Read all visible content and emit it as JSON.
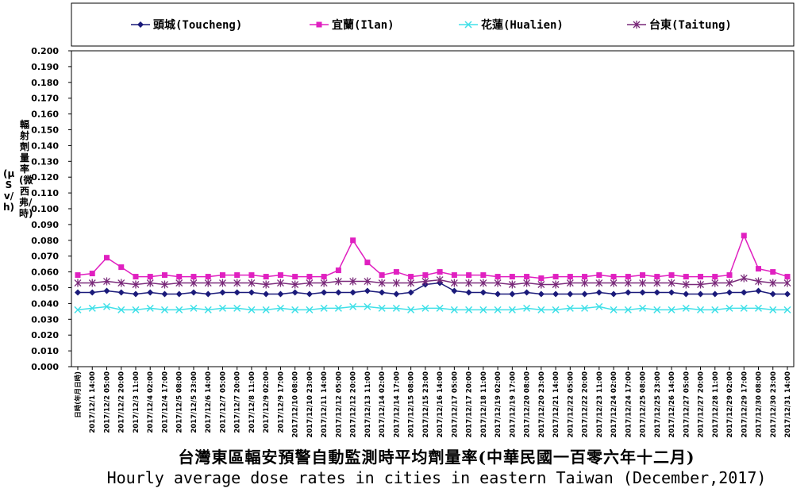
{
  "chart_data": {
    "type": "line",
    "title_zh": "台灣東區輻安預警自動監測時平均劑量率(中華民國一百零六年十二月)",
    "title_en": "Hourly average dose rates in cities in eastern Taiwan (December,2017)",
    "ylabel_part1": "輻射劑量率(微西弗/時)",
    "ylabel_part2": "(μSv/h)",
    "ylim": [
      0,
      0.2
    ],
    "ytick_step": 0.01,
    "y_ticks": [
      "0.000",
      "0.010",
      "0.020",
      "0.030",
      "0.040",
      "0.050",
      "0.060",
      "0.070",
      "0.080",
      "0.090",
      "0.100",
      "0.110",
      "0.120",
      "0.130",
      "0.140",
      "0.150",
      "0.160",
      "0.170",
      "0.180",
      "0.190",
      "0.200"
    ],
    "x_tick_labels": [
      "日時(年月日時)",
      "2017/12/1 14:00",
      "2017/12/2 05:00",
      "2017/12/2 20:00",
      "2017/12/3 11:00",
      "2017/12/4 02:00",
      "2017/12/4 17:00",
      "2017/12/5 08:00",
      "2017/12/5 23:00",
      "2017/12/6 14:00",
      "2017/12/7 05:00",
      "2017/12/7 20:00",
      "2017/12/8 11:00",
      "2017/12/9 02:00",
      "2017/12/9 17:00",
      "2017/12/10 08:00",
      "2017/12/10 23:00",
      "2017/12/11 14:00",
      "2017/12/12 05:00",
      "2017/12/12 20:00",
      "2017/12/13 11:00",
      "2017/12/14 02:00",
      "2017/12/14 17:00",
      "2017/12/15 08:00",
      "2017/12/15 23:00",
      "2017/12/16 14:00",
      "2017/12/17 05:00",
      "2017/12/17 20:00",
      "2017/12/18 11:00",
      "2017/12/19 02:00",
      "2017/12/19 17:00",
      "2017/12/20 08:00",
      "2017/12/20 23:00",
      "2017/12/21 14:00",
      "2017/12/22 05:00",
      "2017/12/22 20:00",
      "2017/12/23 11:00",
      "2017/12/24 02:00",
      "2017/12/24 17:00",
      "2017/12/25 08:00",
      "2017/12/25 23:00",
      "2017/12/26 14:00",
      "2017/12/27 05:00",
      "2017/12/27 20:00",
      "2017/12/28 11:00",
      "2017/12/29 02:00",
      "2017/12/29 17:00",
      "2017/12/30 08:00",
      "2017/12/30 23:00",
      "2017/12/31 14:00"
    ],
    "legend_position": "top",
    "grid": false,
    "series": [
      {
        "name": "頭城(Toucheng)",
        "color": "#1a1a7a",
        "marker": "diamond",
        "values": [
          0.047,
          0.047,
          0.048,
          0.047,
          0.046,
          0.047,
          0.046,
          0.046,
          0.047,
          0.046,
          0.047,
          0.047,
          0.047,
          0.046,
          0.046,
          0.047,
          0.046,
          0.047,
          0.047,
          0.047,
          0.048,
          0.047,
          0.046,
          0.047,
          0.052,
          0.053,
          0.048,
          0.047,
          0.047,
          0.046,
          0.046,
          0.047,
          0.046,
          0.046,
          0.046,
          0.046,
          0.047,
          0.046,
          0.047,
          0.047,
          0.047,
          0.047,
          0.046,
          0.046,
          0.046,
          0.047,
          0.047,
          0.048,
          0.046,
          0.046
        ]
      },
      {
        "name": "宜蘭(Ilan)",
        "color": "#e020c0",
        "marker": "square",
        "values": [
          0.058,
          0.059,
          0.069,
          0.063,
          0.057,
          0.057,
          0.058,
          0.057,
          0.057,
          0.057,
          0.058,
          0.058,
          0.058,
          0.057,
          0.058,
          0.057,
          0.057,
          0.057,
          0.061,
          0.08,
          0.066,
          0.058,
          0.06,
          0.057,
          0.058,
          0.06,
          0.058,
          0.058,
          0.058,
          0.057,
          0.057,
          0.057,
          0.056,
          0.057,
          0.057,
          0.057,
          0.058,
          0.057,
          0.057,
          0.058,
          0.057,
          0.058,
          0.057,
          0.057,
          0.057,
          0.058,
          0.083,
          0.062,
          0.06,
          0.057
        ]
      },
      {
        "name": "花蓮(Hualien)",
        "color": "#40e0e8",
        "marker": "x",
        "values": [
          0.036,
          0.037,
          0.038,
          0.036,
          0.036,
          0.037,
          0.036,
          0.036,
          0.037,
          0.036,
          0.037,
          0.037,
          0.036,
          0.036,
          0.037,
          0.036,
          0.036,
          0.037,
          0.037,
          0.038,
          0.038,
          0.037,
          0.037,
          0.036,
          0.037,
          0.037,
          0.036,
          0.036,
          0.036,
          0.036,
          0.036,
          0.037,
          0.036,
          0.036,
          0.037,
          0.037,
          0.038,
          0.036,
          0.036,
          0.037,
          0.036,
          0.036,
          0.037,
          0.036,
          0.036,
          0.037,
          0.037,
          0.037,
          0.036,
          0.036
        ]
      },
      {
        "name": "台東(Taitung)",
        "color": "#7a2a7a",
        "marker": "star",
        "values": [
          0.053,
          0.053,
          0.054,
          0.053,
          0.052,
          0.053,
          0.052,
          0.053,
          0.053,
          0.053,
          0.053,
          0.053,
          0.053,
          0.052,
          0.053,
          0.052,
          0.053,
          0.053,
          0.054,
          0.054,
          0.054,
          0.053,
          0.053,
          0.053,
          0.054,
          0.055,
          0.053,
          0.053,
          0.053,
          0.053,
          0.052,
          0.053,
          0.052,
          0.052,
          0.053,
          0.053,
          0.053,
          0.053,
          0.053,
          0.053,
          0.053,
          0.053,
          0.052,
          0.052,
          0.053,
          0.053,
          0.056,
          0.054,
          0.053,
          0.053
        ]
      }
    ]
  }
}
